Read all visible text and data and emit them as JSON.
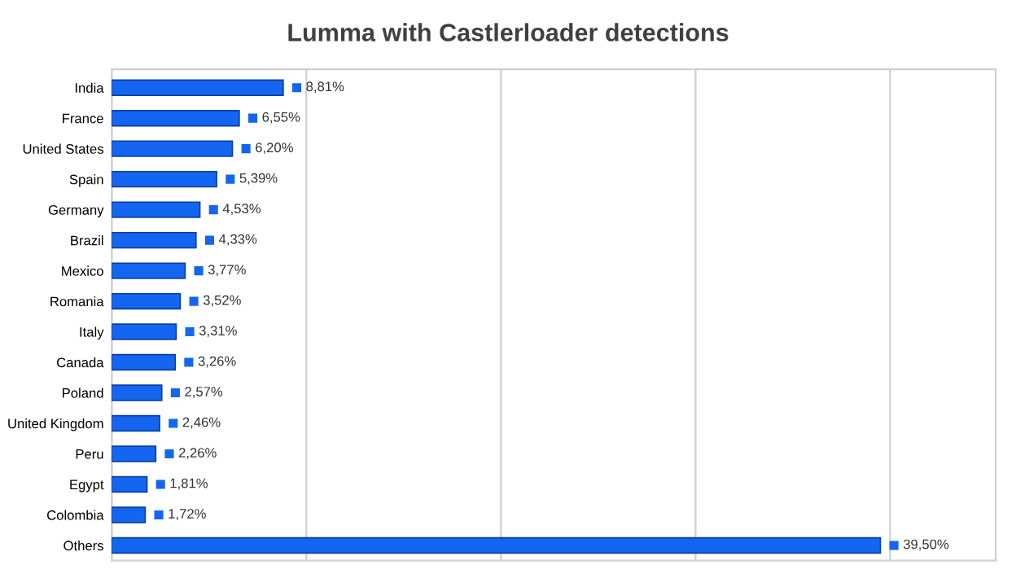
{
  "chart_data": {
    "type": "bar",
    "orientation": "horizontal",
    "title": "Lumma with Castlerloader detections",
    "categories": [
      "India",
      "France",
      "United States",
      "Spain",
      "Germany",
      "Brazil",
      "Mexico",
      "Romania",
      "Italy",
      "Canada",
      "Poland",
      "United Kingdom",
      "Peru",
      "Egypt",
      "Colombia",
      "Others"
    ],
    "values": [
      8.81,
      6.55,
      6.2,
      5.39,
      4.53,
      4.33,
      3.77,
      3.52,
      3.31,
      3.26,
      2.57,
      2.46,
      2.26,
      1.81,
      1.72,
      39.5
    ],
    "value_labels": [
      "8,81%",
      "6,55%",
      "6,20%",
      "5,39%",
      "4,53%",
      "4,33%",
      "3,77%",
      "3,52%",
      "3,31%",
      "3,26%",
      "2,57%",
      "2,46%",
      "2,26%",
      "1,81%",
      "1,72%",
      "39,50%"
    ],
    "color": "#1466f0",
    "grid": "x",
    "tick_labels": "y"
  }
}
